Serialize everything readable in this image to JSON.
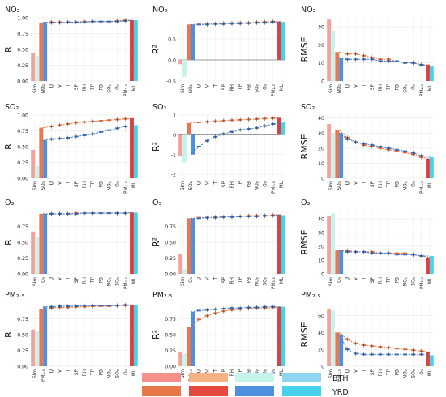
{
  "chart_data": [
    {
      "type": "bar",
      "title": "NO₂",
      "ylabel": "R",
      "ylim": [
        0,
        1
      ],
      "yticks": [
        "0.00",
        "0.25",
        "0.50",
        "0.75",
        "1.00"
      ],
      "categories": [
        "Sim",
        "NO₂",
        "U",
        "V",
        "T",
        "SP",
        "RH",
        "TP",
        "PB",
        "SO₂",
        "O₃",
        "PM₂.₅",
        "ML"
      ],
      "series": [
        {
          "name": "BTH",
          "values": [
            0.44,
            0.92,
            0.93,
            0.93,
            0.93,
            0.93,
            0.94,
            0.94,
            0.94,
            0.94,
            0.95,
            0.96,
            0.96
          ]
        },
        {
          "name": "YRD",
          "values": [
            0.4,
            0.93,
            0.92,
            0.92,
            0.93,
            0.93,
            0.93,
            0.94,
            0.94,
            0.94,
            0.94,
            0.95,
            0.96
          ]
        }
      ]
    },
    {
      "type": "bar",
      "title": "NO₂",
      "ylabel": "R²",
      "ylim": [
        -0.5,
        1
      ],
      "yticks": [
        "-0.5",
        "0.0",
        "0.5"
      ],
      "categories": [
        "Sim",
        "NO₂",
        "U",
        "V",
        "T",
        "SP",
        "RH",
        "TP",
        "PB",
        "SO₂",
        "O₃",
        "PM₂.₅",
        "ML"
      ],
      "series": [
        {
          "name": "BTH",
          "values": [
            -0.1,
            0.84,
            0.84,
            0.85,
            0.86,
            0.87,
            0.87,
            0.88,
            0.88,
            0.89,
            0.9,
            0.91,
            0.91
          ]
        },
        {
          "name": "YRD",
          "values": [
            -0.4,
            0.84,
            0.84,
            0.84,
            0.85,
            0.85,
            0.86,
            0.86,
            0.87,
            0.88,
            0.88,
            0.9,
            0.9
          ]
        }
      ]
    },
    {
      "type": "bar",
      "title": "NO₂",
      "ylabel": "RMSE",
      "ylim": [
        0,
        35
      ],
      "yticks": [
        "0",
        "10",
        "20",
        "30"
      ],
      "categories": [
        "Sim",
        "NO₂",
        "U",
        "V",
        "T",
        "SP",
        "RH",
        "TP",
        "PB",
        "SO₂",
        "O₃",
        "PM₂.₅",
        "ML"
      ],
      "series": [
        {
          "name": "BTH",
          "values": [
            34,
            16,
            15,
            15,
            14,
            13,
            12,
            12,
            11,
            10,
            10,
            9,
            9
          ]
        },
        {
          "name": "YRD",
          "values": [
            28,
            13,
            12,
            12,
            12,
            12,
            11,
            11,
            11,
            10,
            10,
            9,
            8
          ]
        }
      ]
    },
    {
      "type": "bar",
      "title": "SO₂",
      "ylabel": "R",
      "ylim": [
        0,
        1
      ],
      "yticks": [
        "0.00",
        "0.25",
        "0.50",
        "0.75",
        "1.00"
      ],
      "categories": [
        "Sim",
        "SO₂",
        "U",
        "V",
        "T",
        "SP",
        "RH",
        "TP",
        "PB",
        "NO₂",
        "O₃",
        "PM₂.₅",
        "ML"
      ],
      "series": [
        {
          "name": "BTH",
          "values": [
            0.45,
            0.8,
            0.82,
            0.84,
            0.86,
            0.88,
            0.89,
            0.9,
            0.91,
            0.92,
            0.93,
            0.94,
            0.95
          ]
        },
        {
          "name": "YRD",
          "values": [
            0.2,
            0.6,
            0.62,
            0.63,
            0.64,
            0.66,
            0.68,
            0.7,
            0.73,
            0.76,
            0.79,
            0.82,
            0.84
          ]
        }
      ]
    },
    {
      "type": "bar",
      "title": "SO₂",
      "ylabel": "R²",
      "ylim": [
        -2.2,
        1
      ],
      "yticks": [
        "-2",
        "-1",
        "0",
        "1"
      ],
      "categories": [
        "Sim",
        "SO₂",
        "U",
        "V",
        "T",
        "SP",
        "RH",
        "TP",
        "PB",
        "NO₂",
        "O₃",
        "PM₂.₅",
        "ML"
      ],
      "series": [
        {
          "name": "BTH",
          "values": [
            -1.1,
            0.6,
            0.63,
            0.66,
            0.69,
            0.72,
            0.74,
            0.76,
            0.78,
            0.8,
            0.82,
            0.84,
            0.86
          ]
        },
        {
          "name": "YRD",
          "values": [
            -1.4,
            -1.0,
            -0.6,
            -0.3,
            -0.1,
            0.05,
            0.15,
            0.25,
            0.3,
            0.35,
            0.45,
            0.55,
            0.62
          ]
        }
      ]
    },
    {
      "type": "bar",
      "title": "SO₂",
      "ylabel": "RMSE",
      "ylim": [
        0,
        42
      ],
      "yticks": [
        "0",
        "10",
        "20",
        "30",
        "40"
      ],
      "categories": [
        "Sim",
        "SO₂",
        "U",
        "V",
        "T",
        "SP",
        "RH",
        "TP",
        "PB",
        "NO₂",
        "O₃",
        "PM₂.₅",
        "ML"
      ],
      "series": [
        {
          "name": "BTH",
          "values": [
            36,
            32,
            27,
            24,
            22,
            21,
            20,
            19,
            18,
            17,
            16,
            14,
            13
          ]
        },
        {
          "name": "YRD",
          "values": [
            30,
            30,
            26,
            24,
            23,
            22,
            21,
            20,
            19,
            18,
            17,
            15,
            14
          ]
        }
      ]
    },
    {
      "type": "bar",
      "title": "O₃",
      "ylabel": "R",
      "ylim": [
        0,
        1
      ],
      "yticks": [
        "0.00",
        "0.25",
        "0.50",
        "0.75"
      ],
      "categories": [
        "Sim",
        "O₃",
        "U",
        "V",
        "T",
        "SP",
        "RH",
        "TP",
        "PB",
        "NO₂",
        "SO₂",
        "PM₂.₅",
        "ML"
      ],
      "series": [
        {
          "name": "BTH",
          "values": [
            0.67,
            0.95,
            0.95,
            0.95,
            0.95,
            0.96,
            0.96,
            0.96,
            0.96,
            0.96,
            0.96,
            0.96,
            0.97
          ]
        },
        {
          "name": "YRD",
          "values": [
            0.58,
            0.95,
            0.95,
            0.95,
            0.95,
            0.95,
            0.96,
            0.96,
            0.96,
            0.96,
            0.96,
            0.96,
            0.97
          ]
        }
      ]
    },
    {
      "type": "bar",
      "title": "O₃",
      "ylabel": "R²",
      "ylim": [
        0,
        1
      ],
      "yticks": [
        "0.00",
        "0.25",
        "0.50",
        "0.75"
      ],
      "categories": [
        "Sim",
        "O₃",
        "U",
        "V",
        "T",
        "SP",
        "RH",
        "TP",
        "PB",
        "NO₂",
        "SO₂",
        "PM₂.₅",
        "ML"
      ],
      "series": [
        {
          "name": "BTH",
          "values": [
            0.32,
            0.88,
            0.89,
            0.89,
            0.9,
            0.9,
            0.91,
            0.91,
            0.92,
            0.92,
            0.92,
            0.93,
            0.94
          ]
        },
        {
          "name": "YRD",
          "values": [
            0.08,
            0.88,
            0.88,
            0.89,
            0.89,
            0.9,
            0.9,
            0.91,
            0.91,
            0.91,
            0.92,
            0.92,
            0.93
          ]
        }
      ]
    },
    {
      "type": "bar",
      "title": "O₃",
      "ylabel": "RMSE",
      "ylim": [
        0,
        46
      ],
      "yticks": [
        "0",
        "10",
        "20",
        "30",
        "40"
      ],
      "categories": [
        "Sim",
        "O₃",
        "U",
        "V",
        "T",
        "SP",
        "RH",
        "TP",
        "PB",
        "NO₂",
        "SO₂",
        "PM₂.₅",
        "ML"
      ],
      "series": [
        {
          "name": "BTH",
          "values": [
            42,
            17,
            17,
            16,
            16,
            16,
            15,
            15,
            15,
            15,
            14,
            13,
            12
          ]
        },
        {
          "name": "YRD",
          "values": [
            44,
            17,
            16,
            16,
            16,
            15,
            15,
            15,
            14,
            14,
            14,
            13,
            13
          ]
        }
      ]
    },
    {
      "type": "bar",
      "title": "PM₂.₅",
      "ylabel": "R",
      "ylim": [
        0,
        1
      ],
      "yticks": [
        "0.00",
        "0.25",
        "0.50",
        "0.75"
      ],
      "categories": [
        "Sim",
        "PM₂.₅",
        "U",
        "V",
        "T",
        "SP",
        "RH",
        "TP",
        "PB",
        "NO₂",
        "SO₂",
        "O₃",
        "ML"
      ],
      "series": [
        {
          "name": "BTH",
          "values": [
            0.58,
            0.9,
            0.92,
            0.93,
            0.93,
            0.94,
            0.94,
            0.95,
            0.95,
            0.95,
            0.96,
            0.96,
            0.97
          ]
        },
        {
          "name": "YRD",
          "values": [
            0.56,
            0.94,
            0.94,
            0.95,
            0.95,
            0.95,
            0.96,
            0.96,
            0.96,
            0.96,
            0.96,
            0.97,
            0.97
          ]
        }
      ]
    },
    {
      "type": "bar",
      "title": "PM₂.₅",
      "ylabel": "R²",
      "ylim": [
        0,
        1
      ],
      "yticks": [
        "0.00",
        "0.25",
        "0.50",
        "0.75"
      ],
      "categories": [
        "Sim",
        "PM₂.₅",
        "U",
        "V",
        "T",
        "SP",
        "RH",
        "TP",
        "PB",
        "NO₂",
        "SO₂",
        "O₃",
        "ML"
      ],
      "series": [
        {
          "name": "BTH",
          "values": [
            0.22,
            0.62,
            0.74,
            0.8,
            0.84,
            0.87,
            0.89,
            0.9,
            0.91,
            0.92,
            0.92,
            0.93,
            0.94
          ]
        },
        {
          "name": "YRD",
          "values": [
            0.2,
            0.86,
            0.88,
            0.89,
            0.9,
            0.91,
            0.92,
            0.92,
            0.93,
            0.93,
            0.94,
            0.94,
            0.94
          ]
        }
      ]
    },
    {
      "type": "bar",
      "title": "PM₂.₅",
      "ylabel": "RMSE",
      "ylim": [
        0,
        75
      ],
      "yticks": [
        "0",
        "20",
        "40",
        "60"
      ],
      "categories": [
        "Sim",
        "PM₂.₅",
        "U",
        "V",
        "T",
        "SP",
        "RH",
        "TP",
        "PB",
        "NO₂",
        "SO₂",
        "O₃",
        "ML"
      ],
      "series": [
        {
          "name": "BTH",
          "values": [
            68,
            40,
            32,
            27,
            25,
            24,
            23,
            22,
            21,
            20,
            19,
            18,
            17
          ]
        },
        {
          "name": "YRD",
          "values": [
            66,
            38,
            20,
            15,
            14,
            14,
            14,
            14,
            14,
            14,
            14,
            14,
            13
          ]
        }
      ]
    }
  ],
  "legend": {
    "entries": [
      {
        "name": "BTH"
      },
      {
        "name": "YRD"
      }
    ],
    "colors": {
      "BTH": [
        "#f5908a",
        "#f7b186",
        "#c6f4ea",
        "#8fd4f0"
      ],
      "YRD": [
        "#e8784a",
        "#e8493f",
        "#4f8fe0",
        "#46d2ea"
      ]
    }
  },
  "colors": {
    "sim_btH": "#f5a09a",
    "sim_yrd": "#c6f4ea",
    "single_bth": "#e8784a",
    "single_yrd": "#4f8fe0",
    "ml_bth": "#d94040",
    "ml_yrd": "#46d2ea",
    "line_bth": "#e06a3a",
    "line_yrd": "#3a6fc0",
    "error": "#333333",
    "grid": "#e8e8e8"
  }
}
